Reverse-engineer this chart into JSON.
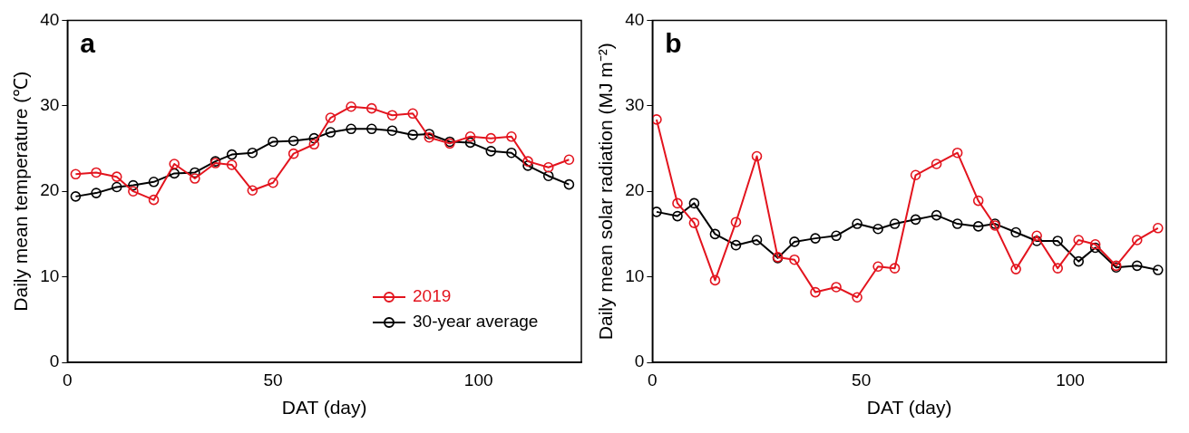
{
  "chart_data": [
    {
      "type": "line",
      "xlabel": "DAT (day)",
      "ylabel": "Daily mean temperature (℃)",
      "annotations": [
        "a"
      ],
      "x": [
        2,
        7,
        12,
        16,
        21,
        26,
        31,
        36,
        40,
        45,
        50,
        55,
        60,
        64,
        69,
        74,
        79,
        84,
        88,
        93,
        98,
        103,
        108,
        112,
        117,
        122
      ],
      "series": [
        {
          "name": "2019",
          "color": "#e3141e",
          "values": [
            22.0,
            22.2,
            21.7,
            20.0,
            19.0,
            23.2,
            21.5,
            23.3,
            23.1,
            20.1,
            21.0,
            24.4,
            25.5,
            28.6,
            29.9,
            29.7,
            28.9,
            29.1,
            26.3,
            25.6,
            26.4,
            26.2,
            26.4,
            23.5,
            22.8,
            23.7
          ]
        },
        {
          "name": "30-year average",
          "color": "#000000",
          "values": [
            19.4,
            19.8,
            20.5,
            20.7,
            21.1,
            22.1,
            22.2,
            23.5,
            24.3,
            24.5,
            25.8,
            25.9,
            26.2,
            26.9,
            27.3,
            27.3,
            27.1,
            26.6,
            26.7,
            25.8,
            25.7,
            24.7,
            24.5,
            23.0,
            21.8,
            20.8
          ]
        }
      ],
      "xlim": [
        0,
        125
      ],
      "xticks": [
        0,
        50,
        100
      ],
      "ylim": [
        0,
        40
      ],
      "yticks": [
        0,
        10,
        20,
        30,
        40
      ],
      "grid": false,
      "legend": "bottom right",
      "marker": "circle",
      "line_style": "solid"
    },
    {
      "type": "line",
      "xlabel": "DAT (day)",
      "ylabel": "Daily mean solar radiation (MJ m⁻²)",
      "annotations": [
        "b"
      ],
      "x": [
        1,
        6,
        10,
        15,
        20,
        25,
        30,
        34,
        39,
        44,
        49,
        54,
        58,
        63,
        68,
        73,
        78,
        82,
        87,
        92,
        97,
        102,
        106,
        111,
        116,
        121
      ],
      "series": [
        {
          "color": "#e3141e",
          "values": [
            28.4,
            18.6,
            16.3,
            9.6,
            16.4,
            24.1,
            12.3,
            12.0,
            8.2,
            8.8,
            7.6,
            11.2,
            11.0,
            21.9,
            23.2,
            24.5,
            18.9,
            16.0,
            10.9,
            14.8,
            11.0,
            14.3,
            13.8,
            11.3,
            14.3,
            15.7
          ]
        },
        {
          "color": "#000000",
          "values": [
            17.6,
            17.1,
            18.6,
            15.0,
            13.7,
            14.3,
            12.2,
            14.1,
            14.5,
            14.8,
            16.2,
            15.6,
            16.2,
            16.7,
            17.2,
            16.2,
            15.9,
            16.2,
            15.2,
            14.2,
            14.2,
            11.8,
            13.4,
            11.1,
            11.3,
            10.8
          ]
        }
      ],
      "xlim": [
        0,
        123
      ],
      "xticks": [
        0,
        50,
        100
      ],
      "ylim": [
        0,
        40
      ],
      "yticks": [
        0,
        10,
        20,
        30,
        40
      ],
      "grid": false,
      "legend": false,
      "marker": "circle",
      "line_style": "solid"
    }
  ]
}
